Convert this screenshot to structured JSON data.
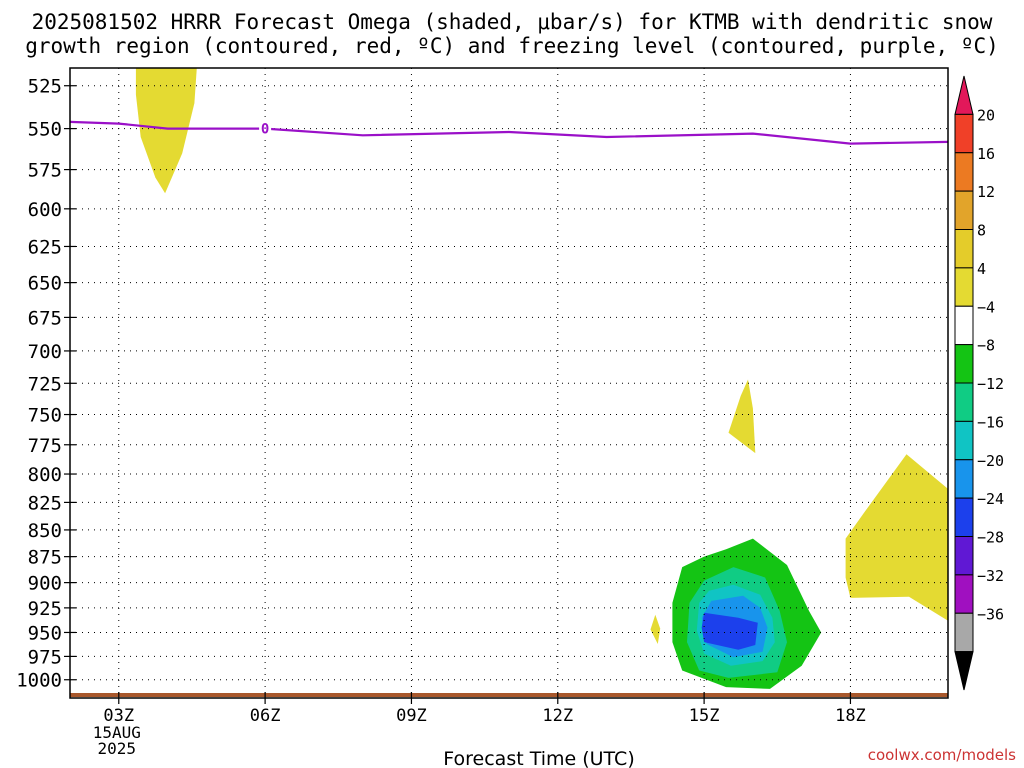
{
  "title_line1": "2025081502 HRRR Forecast Omega (shaded, μbar/s) for KTMB with dendritic snow",
  "title_line2": "growth region (contoured, red, ºC) and freezing level (contoured, purple, ºC)",
  "credit": "coolwx.com/models",
  "chart_data": {
    "type": "contour",
    "xlabel": "Forecast Time (UTC)",
    "ylabel": "",
    "x_ticks": [
      {
        "label": "03Z",
        "hour": 3
      },
      {
        "label": "06Z",
        "hour": 6
      },
      {
        "label": "09Z",
        "hour": 9
      },
      {
        "label": "12Z",
        "hour": 12
      },
      {
        "label": "15Z",
        "hour": 15
      },
      {
        "label": "18Z",
        "hour": 18
      }
    ],
    "date_label": [
      "15AUG",
      "2025"
    ],
    "xlim": [
      2,
      20
    ],
    "y_ticks": [
      525,
      550,
      575,
      600,
      625,
      650,
      675,
      700,
      725,
      750,
      775,
      800,
      825,
      850,
      875,
      900,
      925,
      950,
      975,
      1000
    ],
    "ylim": [
      515,
      1020
    ],
    "y_scale": "log-pressure",
    "grid": true,
    "colorbar": {
      "labels": [
        "20",
        "16",
        "12",
        "8",
        "4",
        "−4",
        "−8",
        "−12",
        "−16",
        "−20",
        "−24",
        "−28",
        "−32",
        "−36"
      ],
      "colors": [
        "#e2185a",
        "#f04028",
        "#ec7a22",
        "#e2a42a",
        "#e4cc2a",
        "#e4da32",
        "#ffffff",
        "#14c414",
        "#10cc84",
        "#10c4c4",
        "#1894ec",
        "#1c40ec",
        "#6018d4",
        "#a010c0",
        "#a8a8a8",
        "#000000"
      ]
    },
    "freezing_level": {
      "color": "#9a10c8",
      "label": "0",
      "points": [
        [
          2,
          546
        ],
        [
          3,
          547
        ],
        [
          4,
          550
        ],
        [
          6,
          550
        ],
        [
          8,
          554
        ],
        [
          11,
          552
        ],
        [
          13,
          555
        ],
        [
          16,
          553
        ],
        [
          18,
          559
        ],
        [
          20,
          558
        ]
      ]
    },
    "terrain": {
      "color": "#a8582c",
      "points": [
        [
          2,
          1026
        ],
        [
          6,
          1025
        ],
        [
          12,
          1026
        ],
        [
          16,
          1027
        ],
        [
          18,
          1027
        ],
        [
          20,
          1025
        ]
      ]
    },
    "omega_regions": [
      {
        "value": 4,
        "color": "#e4da32",
        "points": [
          [
            3.35,
            515
          ],
          [
            4.6,
            515
          ],
          [
            4.55,
            535
          ],
          [
            4.3,
            565
          ],
          [
            3.95,
            590
          ],
          [
            3.75,
            580
          ],
          [
            3.45,
            555
          ],
          [
            3.35,
            530
          ]
        ]
      },
      {
        "value": 4,
        "color": "#e4da32",
        "points": [
          [
            15.9,
            722
          ],
          [
            16.0,
            745
          ],
          [
            16.05,
            782
          ],
          [
            15.5,
            765
          ],
          [
            15.75,
            735
          ]
        ]
      },
      {
        "value": 4,
        "color": "#e4da32",
        "points": [
          [
            14.0,
            932
          ],
          [
            14.1,
            946
          ],
          [
            14.05,
            962
          ],
          [
            13.9,
            947
          ]
        ]
      },
      {
        "value": 4,
        "color": "#e4da32",
        "points": [
          [
            20.0,
            813
          ],
          [
            19.15,
            783
          ],
          [
            18.3,
            833
          ],
          [
            17.9,
            858
          ],
          [
            17.9,
            895
          ],
          [
            18.0,
            915
          ],
          [
            19.2,
            914
          ],
          [
            20.0,
            938
          ]
        ]
      },
      {
        "value": -4,
        "color": "#14c414",
        "points": [
          [
            15.0,
            875
          ],
          [
            15.45,
            868
          ],
          [
            16.0,
            858
          ],
          [
            16.7,
            883
          ],
          [
            17.15,
            928
          ],
          [
            17.4,
            950
          ],
          [
            17.0,
            985
          ],
          [
            16.35,
            1010
          ],
          [
            15.45,
            1008
          ],
          [
            15.05,
            1000
          ],
          [
            14.55,
            990
          ],
          [
            14.35,
            960
          ],
          [
            14.35,
            920
          ],
          [
            14.55,
            885
          ]
        ]
      },
      {
        "value": -8,
        "color": "#10cc84",
        "points": [
          [
            15.0,
            898
          ],
          [
            15.6,
            885
          ],
          [
            16.25,
            895
          ],
          [
            16.55,
            928
          ],
          [
            16.7,
            960
          ],
          [
            16.5,
            992
          ],
          [
            15.5,
            998
          ],
          [
            14.9,
            990
          ],
          [
            14.65,
            960
          ],
          [
            14.7,
            920
          ]
        ]
      },
      {
        "value": -12,
        "color": "#10c4c4",
        "points": [
          [
            15.1,
            908
          ],
          [
            15.6,
            902
          ],
          [
            16.15,
            912
          ],
          [
            16.4,
            935
          ],
          [
            16.45,
            960
          ],
          [
            16.2,
            980
          ],
          [
            15.55,
            985
          ],
          [
            15.0,
            972
          ],
          [
            14.85,
            948
          ],
          [
            14.9,
            920
          ]
        ]
      },
      {
        "value": -16,
        "color": "#1894ec",
        "points": [
          [
            15.15,
            918
          ],
          [
            15.8,
            913
          ],
          [
            16.15,
            925
          ],
          [
            16.3,
            945
          ],
          [
            16.2,
            970
          ],
          [
            15.6,
            976
          ],
          [
            15.05,
            962
          ],
          [
            14.95,
            935
          ]
        ]
      },
      {
        "value": -20,
        "color": "#1c40ec",
        "points": [
          [
            15.0,
            930
          ],
          [
            15.7,
            935
          ],
          [
            16.1,
            940
          ],
          [
            16.05,
            963
          ],
          [
            15.7,
            968
          ],
          [
            15.0,
            960
          ],
          [
            14.95,
            945
          ]
        ]
      }
    ]
  }
}
